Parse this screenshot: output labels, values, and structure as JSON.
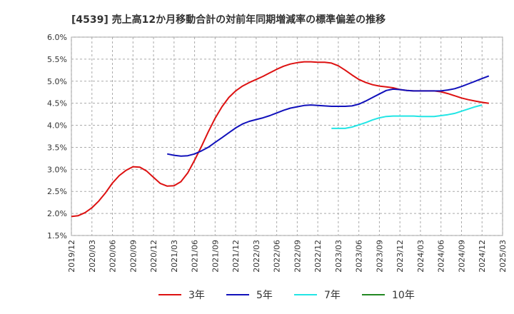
{
  "chart_data": {
    "type": "line",
    "title": "[4539]  売上高12か月移動合計の対前年同期増減率の標準偏差の推移",
    "xlabel": "",
    "ylabel": "",
    "ylim": [
      1.5,
      6.0
    ],
    "y_ticks": [
      "1.5%",
      "2.0%",
      "2.5%",
      "3.0%",
      "3.5%",
      "4.0%",
      "4.5%",
      "5.0%",
      "5.5%",
      "6.0%"
    ],
    "x_ticks": [
      "2019/12",
      "2020/03",
      "2020/06",
      "2020/09",
      "2020/12",
      "2021/03",
      "2021/06",
      "2021/09",
      "2021/12",
      "2022/03",
      "2022/06",
      "2022/09",
      "2022/12",
      "2023/03",
      "2023/06",
      "2023/09",
      "2023/12",
      "2024/03",
      "2024/06",
      "2024/09",
      "2024/12",
      "2025/03"
    ],
    "grid": true,
    "legend_position": "bottom",
    "series": [
      {
        "name": "3年",
        "color": "#dd1111",
        "start": "2019/12",
        "values": [
          1.93,
          1.95,
          2.02,
          2.13,
          2.28,
          2.47,
          2.69,
          2.86,
          2.98,
          3.06,
          3.05,
          2.96,
          2.82,
          2.68,
          2.62,
          2.63,
          2.72,
          2.92,
          3.21,
          3.52,
          3.85,
          4.16,
          4.42,
          4.63,
          4.78,
          4.89,
          4.97,
          5.04,
          5.11,
          5.19,
          5.27,
          5.34,
          5.39,
          5.42,
          5.44,
          5.44,
          5.43,
          5.43,
          5.41,
          5.35,
          5.25,
          5.14,
          5.04,
          4.97,
          4.92,
          4.89,
          4.87,
          4.85,
          4.81,
          4.79,
          4.78,
          4.78,
          4.78,
          4.78,
          4.76,
          4.72,
          4.67,
          4.62,
          4.58,
          4.55,
          4.52,
          4.5
        ]
      },
      {
        "name": "5年",
        "color": "#1111bb",
        "start": "2021/02",
        "values": [
          3.35,
          3.32,
          3.3,
          3.31,
          3.35,
          3.42,
          3.5,
          3.61,
          3.72,
          3.83,
          3.94,
          4.03,
          4.09,
          4.13,
          4.17,
          4.22,
          4.28,
          4.34,
          4.39,
          4.42,
          4.45,
          4.46,
          4.45,
          4.44,
          4.43,
          4.43,
          4.43,
          4.44,
          4.48,
          4.55,
          4.63,
          4.71,
          4.79,
          4.82,
          4.81,
          4.79,
          4.78,
          4.78,
          4.78,
          4.78,
          4.78,
          4.8,
          4.83,
          4.88,
          4.94,
          5.0,
          5.06,
          5.12
        ]
      },
      {
        "name": "7年",
        "color": "#22e5e5",
        "start": "2023/02",
        "values": [
          3.93,
          3.93,
          3.93,
          3.96,
          4.01,
          4.06,
          4.12,
          4.17,
          4.2,
          4.21,
          4.21,
          4.21,
          4.21,
          4.2,
          4.2,
          4.2,
          4.22,
          4.24,
          4.27,
          4.32,
          4.37,
          4.42,
          4.46
        ]
      },
      {
        "name": "10年",
        "color": "#228822",
        "start": "2019/12",
        "values": []
      }
    ]
  }
}
